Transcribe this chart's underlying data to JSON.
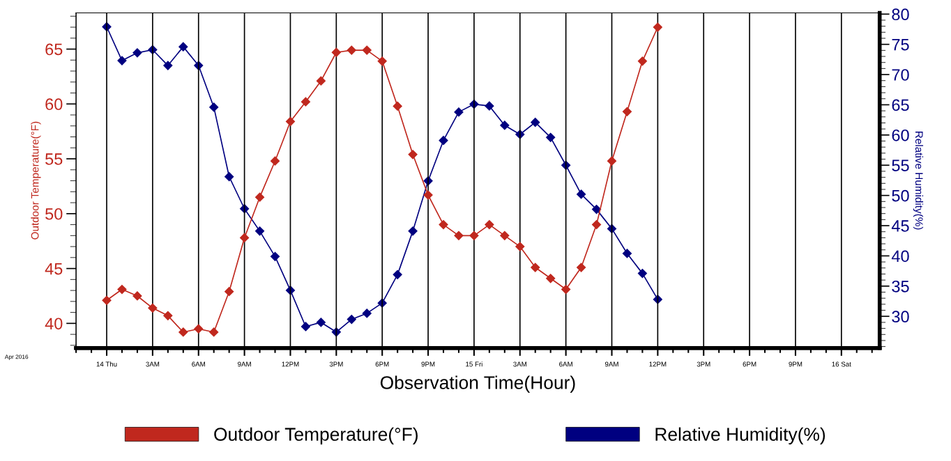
{
  "chart_data": {
    "type": "line",
    "xlabel": "Observation Time(Hour)",
    "ylabel": "Outdoor Temperature(°F)",
    "y2label": "Relative Humidity(%)",
    "x": [
      "2016-04-14T00:00",
      "2016-04-14T01:00",
      "2016-04-14T02:00",
      "2016-04-14T03:00",
      "2016-04-14T04:00",
      "2016-04-14T05:00",
      "2016-04-14T06:00",
      "2016-04-14T07:00",
      "2016-04-14T08:00",
      "2016-04-14T09:00",
      "2016-04-14T10:00",
      "2016-04-14T11:00",
      "2016-04-14T12:00",
      "2016-04-14T13:00",
      "2016-04-14T14:00",
      "2016-04-14T15:00",
      "2016-04-14T16:00",
      "2016-04-14T17:00",
      "2016-04-14T18:00",
      "2016-04-14T19:00",
      "2016-04-14T20:00",
      "2016-04-14T21:00",
      "2016-04-14T22:00",
      "2016-04-14T23:00",
      "2016-04-15T00:00",
      "2016-04-15T01:00",
      "2016-04-15T02:00",
      "2016-04-15T03:00",
      "2016-04-15T04:00",
      "2016-04-15T05:00",
      "2016-04-15T06:00",
      "2016-04-15T07:00",
      "2016-04-15T08:00",
      "2016-04-15T09:00",
      "2016-04-15T10:00",
      "2016-04-15T11:00",
      "2016-04-15T12:00"
    ],
    "series": [
      {
        "name": "Outdoor Temperature(°F)",
        "color": "#c0281e",
        "values": [
          42.1,
          43.1,
          42.5,
          41.4,
          40.7,
          39.2,
          39.5,
          39.2,
          42.9,
          47.8,
          51.5,
          54.8,
          58.4,
          60.2,
          62.1,
          64.7,
          64.9,
          64.9,
          63.9,
          59.8,
          55.4,
          51.7,
          49.0,
          48.0,
          48.0,
          49.0,
          48.0,
          47.0,
          45.1,
          44.1,
          43.1,
          45.1,
          49.0,
          54.8,
          59.3,
          63.9,
          67.0
        ]
      },
      {
        "name": "Relative Humidity(%)",
        "color": "#000080",
        "axis": "y2",
        "values": [
          77.9,
          72.3,
          73.6,
          74.1,
          71.5,
          74.6,
          71.5,
          64.6,
          53.1,
          47.8,
          44.1,
          39.9,
          34.3,
          28.3,
          29.0,
          27.4,
          29.5,
          30.5,
          32.2,
          36.9,
          44.1,
          52.4,
          59.1,
          63.8,
          65.1,
          64.8,
          61.6,
          60.1,
          62.1,
          59.6,
          55.0,
          50.2,
          47.7,
          44.5,
          40.4,
          37.1,
          32.8
        ]
      }
    ],
    "xlim": [
      "2016-04-13T22:00",
      "2016-04-16T02:30"
    ],
    "xticks": [
      {
        "value": "2016-04-14T00:00",
        "label": "14 Thu"
      },
      {
        "value": "2016-04-14T03:00",
        "label": "3AM"
      },
      {
        "value": "2016-04-14T06:00",
        "label": "6AM"
      },
      {
        "value": "2016-04-14T09:00",
        "label": "9AM"
      },
      {
        "value": "2016-04-14T12:00",
        "label": "12PM"
      },
      {
        "value": "2016-04-14T15:00",
        "label": "3PM"
      },
      {
        "value": "2016-04-14T18:00",
        "label": "6PM"
      },
      {
        "value": "2016-04-14T21:00",
        "label": "9PM"
      },
      {
        "value": "2016-04-15T00:00",
        "label": "15 Fri"
      },
      {
        "value": "2016-04-15T03:00",
        "label": "3AM"
      },
      {
        "value": "2016-04-15T06:00",
        "label": "6AM"
      },
      {
        "value": "2016-04-15T09:00",
        "label": "9AM"
      },
      {
        "value": "2016-04-15T12:00",
        "label": "12PM"
      },
      {
        "value": "2016-04-15T15:00",
        "label": "3PM"
      },
      {
        "value": "2016-04-15T18:00",
        "label": "6PM"
      },
      {
        "value": "2016-04-15T21:00",
        "label": "9PM"
      },
      {
        "value": "2016-04-16T00:00",
        "label": "16 Sat"
      }
    ],
    "ylim": [
      37.75,
      68.3
    ],
    "yticks": [
      40,
      45,
      50,
      55,
      60,
      65
    ],
    "y2lim": [
      24.75,
      80.2
    ],
    "y2ticks": [
      30,
      35,
      40,
      45,
      50,
      55,
      60,
      65,
      70,
      75,
      80
    ],
    "grid": "x",
    "legend": "bottom",
    "marker": "diamond",
    "line_style": "solid",
    "annotations": [
      "Apr 2016"
    ]
  }
}
